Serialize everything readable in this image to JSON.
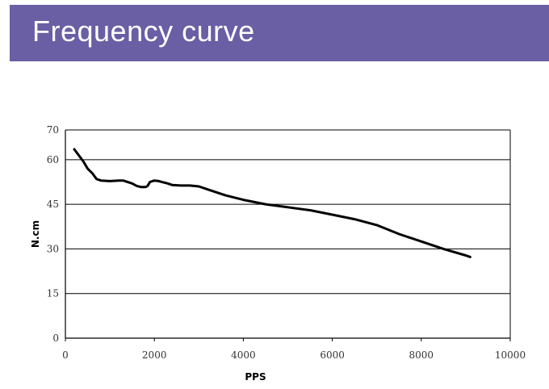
{
  "header": {
    "title": "Frequency curve",
    "background_color": "#6a5ea4",
    "text_color": "#ffffff"
  },
  "chart_data": {
    "type": "line",
    "title": "",
    "xlabel": "PPS",
    "ylabel": "N.cm",
    "xlim": [
      0,
      10000
    ],
    "ylim": [
      0,
      70
    ],
    "x_ticks": [
      0,
      2000,
      4000,
      6000,
      8000,
      10000
    ],
    "y_ticks": [
      0,
      15,
      30,
      45,
      60,
      70
    ],
    "grid": "horizontal",
    "legend": "none",
    "line_color": "#000000",
    "series": [
      {
        "x": [
          200,
          400,
          500,
          600,
          700,
          800,
          1000,
          1200,
          1300,
          1500,
          1600,
          1700,
          1800,
          1850,
          1900,
          2000,
          2100,
          2200,
          2300,
          2400,
          2600,
          2800,
          3000,
          3300,
          3600,
          4000,
          4500,
          5000,
          5500,
          6000,
          6500,
          7000,
          7500,
          8000,
          8500,
          9000,
          9100
        ],
        "y": [
          63.5,
          59.5,
          57.0,
          55.5,
          53.5,
          53.0,
          52.8,
          53.0,
          53.0,
          52.0,
          51.2,
          50.8,
          50.8,
          51.2,
          52.5,
          53.0,
          52.8,
          52.4,
          52.0,
          51.5,
          51.3,
          51.3,
          51.0,
          49.5,
          48.0,
          46.5,
          45.0,
          44.0,
          43.0,
          41.5,
          40.0,
          38.0,
          35.0,
          32.5,
          30.0,
          27.8,
          27.3
        ]
      }
    ]
  }
}
